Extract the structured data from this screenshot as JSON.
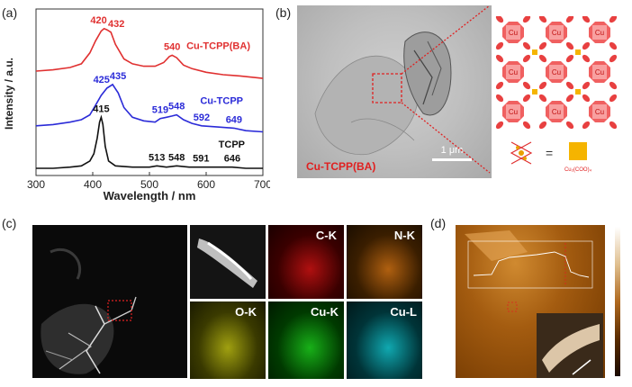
{
  "panels": {
    "a": "(a)",
    "b": "(b)",
    "c": "(c)",
    "d": "(d)"
  },
  "chart_data": {
    "type": "line",
    "xlabel": "Wavelength / nm",
    "ylabel": "Intensity / a.u.",
    "xlim": [
      300,
      700
    ],
    "xticks": [
      "300",
      "400",
      "500",
      "600",
      "700"
    ],
    "series": [
      {
        "name": "Cu-TCPP(BA)",
        "color": "#e03030",
        "x": [
          300,
          330,
          360,
          380,
          395,
          405,
          415,
          420,
          425,
          432,
          440,
          455,
          470,
          490,
          510,
          525,
          535,
          540,
          548,
          560,
          575,
          600,
          630,
          660,
          700
        ],
        "y": [
          0.8,
          0.81,
          0.83,
          0.86,
          0.95,
          1.05,
          1.13,
          1.15,
          1.14,
          1.12,
          1.02,
          0.9,
          0.86,
          0.84,
          0.84,
          0.87,
          0.92,
          0.93,
          0.91,
          0.85,
          0.82,
          0.79,
          0.77,
          0.76,
          0.74
        ],
        "peak_labels": [
          "420",
          "432",
          "540"
        ]
      },
      {
        "name": "Cu-TCPP",
        "color": "#2b2bd8",
        "x": [
          300,
          330,
          360,
          380,
          395,
          405,
          415,
          425,
          435,
          445,
          455,
          470,
          490,
          510,
          519,
          530,
          540,
          548,
          560,
          575,
          592,
          620,
          649,
          670,
          700
        ],
        "y": [
          0.35,
          0.36,
          0.38,
          0.4,
          0.44,
          0.52,
          0.6,
          0.66,
          0.69,
          0.62,
          0.5,
          0.42,
          0.39,
          0.38,
          0.41,
          0.42,
          0.43,
          0.44,
          0.4,
          0.37,
          0.35,
          0.34,
          0.33,
          0.31,
          0.3
        ],
        "peak_labels": [
          "425",
          "435",
          "519",
          "548",
          "592",
          "649"
        ]
      },
      {
        "name": "TCPP",
        "color": "#111111",
        "x": [
          300,
          330,
          360,
          380,
          395,
          402,
          408,
          412,
          415,
          418,
          422,
          428,
          440,
          470,
          500,
          513,
          530,
          548,
          570,
          591,
          620,
          646,
          670,
          700
        ],
        "y": [
          0.0,
          0.0,
          0.01,
          0.02,
          0.06,
          0.12,
          0.25,
          0.38,
          0.42,
          0.36,
          0.18,
          0.06,
          0.02,
          0.01,
          0.01,
          0.02,
          0.01,
          0.02,
          0.01,
          0.01,
          0.01,
          0.01,
          0.0,
          0.0
        ],
        "peak_labels": [
          "415",
          "513",
          "548",
          "591",
          "646"
        ]
      }
    ]
  },
  "tem": {
    "scale_bar": "1 μm",
    "sample": "Cu-TCPP(BA)"
  },
  "schematic": {
    "node_label": "Cu",
    "legend_label": "Cu₂(COO)₄"
  },
  "mapping": {
    "maps": [
      "C-K",
      "N-K",
      "O-K",
      "Cu-K",
      "Cu-L"
    ]
  }
}
